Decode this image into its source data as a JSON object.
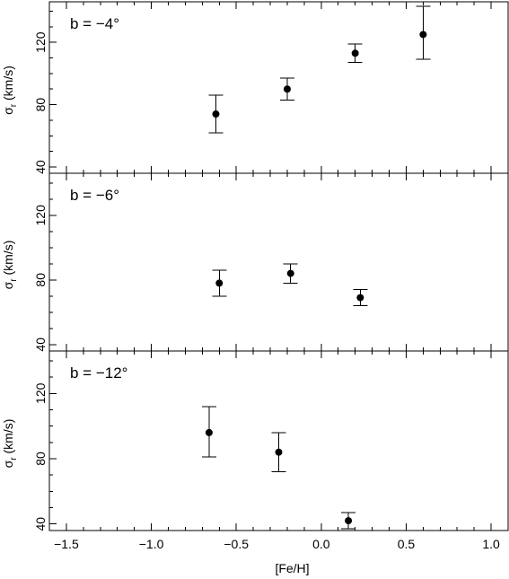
{
  "chart_data": {
    "type": "scatter",
    "xlabel": "[Fe/H]",
    "xlim": [
      -1.6,
      1.1
    ],
    "x_ticks": [
      "-1.5",
      "-1.0",
      "-0.5",
      "0.0",
      "0.5",
      "1.0"
    ],
    "x_tick_values": [
      -1.5,
      -1.0,
      -0.5,
      0.0,
      0.5,
      1.0
    ],
    "grid": false,
    "panels": [
      {
        "label": "b = −4°",
        "ylabel_main": "σ",
        "ylabel_sub": "r",
        "ylabel_rest": " (km/s)",
        "ylim": [
          36,
          146
        ],
        "y_ticks": [
          "40",
          "80",
          "120"
        ],
        "y_tick_values": [
          40,
          80,
          120
        ],
        "points": [
          {
            "x": -0.62,
            "y": 74,
            "err_low": 62,
            "err_high": 86
          },
          {
            "x": -0.2,
            "y": 90,
            "err_low": 83,
            "err_high": 97
          },
          {
            "x": 0.2,
            "y": 113,
            "err_low": 107,
            "err_high": 119
          },
          {
            "x": 0.6,
            "y": 125,
            "err_low": 109,
            "err_high": 143
          }
        ]
      },
      {
        "label": "b = −6°",
        "ylabel_main": "σ",
        "ylabel_sub": "r",
        "ylabel_rest": " (km/s)",
        "ylim": [
          36,
          146
        ],
        "y_ticks": [
          "40",
          "80",
          "120"
        ],
        "y_tick_values": [
          40,
          80,
          120
        ],
        "points": [
          {
            "x": -0.6,
            "y": 78,
            "err_low": 70,
            "err_high": 86
          },
          {
            "x": -0.18,
            "y": 84,
            "err_low": 78,
            "err_high": 90
          },
          {
            "x": 0.23,
            "y": 69,
            "err_low": 64,
            "err_high": 74
          }
        ]
      },
      {
        "label": "b = −12°",
        "ylabel_main": "σ",
        "ylabel_sub": "r",
        "ylabel_rest": " (km/s)",
        "ylim": [
          36,
          146
        ],
        "y_ticks": [
          "40",
          "80",
          "120"
        ],
        "y_tick_values": [
          40,
          80,
          120
        ],
        "points": [
          {
            "x": -0.66,
            "y": 96,
            "err_low": 81,
            "err_high": 112
          },
          {
            "x": -0.25,
            "y": 84,
            "err_low": 72,
            "err_high": 96
          },
          {
            "x": 0.16,
            "y": 42,
            "err_low": 37,
            "err_high": 47
          }
        ]
      }
    ]
  }
}
